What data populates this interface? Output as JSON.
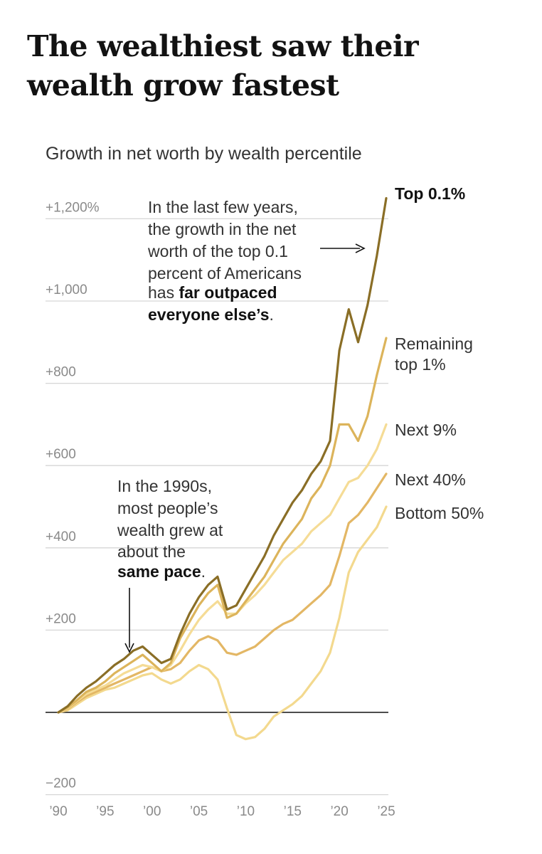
{
  "header": {
    "title": "The wealthiest saw their wealth grow fastest",
    "subtitle": "Growth in net worth by wealth percentile"
  },
  "annotations": {
    "top": {
      "lines": [
        "In the last few years,",
        "the growth in the net",
        "worth of the top 0.1",
        "percent of Americans",
        "has "
      ],
      "bold_a": "far outpaced",
      "bold_b": "everyone else’s",
      "end": "."
    },
    "early": {
      "lines": [
        "In the 1990s,",
        "most people’s",
        "wealth grew at",
        "about the"
      ],
      "bold": "same pace",
      "end": "."
    }
  },
  "chart_data": {
    "type": "line",
    "title": "Growth in net worth by wealth percentile",
    "xlabel": "",
    "ylabel": "",
    "xlim": [
      1990,
      2025
    ],
    "ylim": [
      -200,
      1250
    ],
    "x_ticks": [
      {
        "value": 1990,
        "label": "’90"
      },
      {
        "value": 1995,
        "label": "’95"
      },
      {
        "value": 2000,
        "label": "’00"
      },
      {
        "value": 2005,
        "label": "’05"
      },
      {
        "value": 2010,
        "label": "’10"
      },
      {
        "value": 2015,
        "label": "’15"
      },
      {
        "value": 2020,
        "label": "’20"
      },
      {
        "value": 2025,
        "label": "’25"
      }
    ],
    "y_ticks": [
      {
        "value": 1200,
        "label": "+1,200%"
      },
      {
        "value": 1000,
        "label": "+1,000"
      },
      {
        "value": 800,
        "label": "+800"
      },
      {
        "value": 600,
        "label": "+600"
      },
      {
        "value": 400,
        "label": "+400"
      },
      {
        "value": 200,
        "label": "+200"
      },
      {
        "value": -200,
        "label": "−200"
      }
    ],
    "grid": true,
    "legend": "direct labels at right end of lines",
    "series": [
      {
        "name": "Bottom 50%",
        "color": "#f3d98e",
        "points": [
          [
            1990,
            0
          ],
          [
            1991,
            5
          ],
          [
            1992,
            20
          ],
          [
            1993,
            35
          ],
          [
            1994,
            45
          ],
          [
            1995,
            55
          ],
          [
            1996,
            60
          ],
          [
            1997,
            70
          ],
          [
            1998,
            80
          ],
          [
            1999,
            90
          ],
          [
            2000,
            95
          ],
          [
            2001,
            80
          ],
          [
            2002,
            70
          ],
          [
            2003,
            80
          ],
          [
            2004,
            100
          ],
          [
            2005,
            115
          ],
          [
            2006,
            105
          ],
          [
            2007,
            80
          ],
          [
            2008,
            10
          ],
          [
            2009,
            -55
          ],
          [
            2010,
            -65
          ],
          [
            2011,
            -60
          ],
          [
            2012,
            -40
          ],
          [
            2013,
            -10
          ],
          [
            2014,
            5
          ],
          [
            2015,
            20
          ],
          [
            2016,
            40
          ],
          [
            2017,
            70
          ],
          [
            2018,
            100
          ],
          [
            2019,
            145
          ],
          [
            2020,
            230
          ],
          [
            2021,
            340
          ],
          [
            2022,
            390
          ],
          [
            2023,
            420
          ],
          [
            2024,
            450
          ],
          [
            2025,
            500
          ]
        ]
      },
      {
        "name": "Next 40%",
        "color": "#e3b765",
        "points": [
          [
            1990,
            0
          ],
          [
            1991,
            8
          ],
          [
            1992,
            25
          ],
          [
            1993,
            40
          ],
          [
            1994,
            50
          ],
          [
            1995,
            60
          ],
          [
            1996,
            70
          ],
          [
            1997,
            80
          ],
          [
            1998,
            90
          ],
          [
            1999,
            100
          ],
          [
            2000,
            110
          ],
          [
            2001,
            100
          ],
          [
            2002,
            105
          ],
          [
            2003,
            120
          ],
          [
            2004,
            150
          ],
          [
            2005,
            175
          ],
          [
            2006,
            185
          ],
          [
            2007,
            175
          ],
          [
            2008,
            145
          ],
          [
            2009,
            140
          ],
          [
            2010,
            150
          ],
          [
            2011,
            160
          ],
          [
            2012,
            180
          ],
          [
            2013,
            200
          ],
          [
            2014,
            215
          ],
          [
            2015,
            225
          ],
          [
            2016,
            245
          ],
          [
            2017,
            265
          ],
          [
            2018,
            285
          ],
          [
            2019,
            310
          ],
          [
            2020,
            380
          ],
          [
            2021,
            460
          ],
          [
            2022,
            480
          ],
          [
            2023,
            510
          ],
          [
            2024,
            545
          ],
          [
            2025,
            580
          ]
        ]
      },
      {
        "name": "Next 9%",
        "color": "#f5dc96",
        "points": [
          [
            1990,
            0
          ],
          [
            1991,
            10
          ],
          [
            1992,
            28
          ],
          [
            1993,
            45
          ],
          [
            1994,
            55
          ],
          [
            1995,
            65
          ],
          [
            1996,
            80
          ],
          [
            1997,
            95
          ],
          [
            1998,
            105
          ],
          [
            1999,
            115
          ],
          [
            2000,
            110
          ],
          [
            2001,
            100
          ],
          [
            2002,
            115
          ],
          [
            2003,
            150
          ],
          [
            2004,
            190
          ],
          [
            2005,
            225
          ],
          [
            2006,
            250
          ],
          [
            2007,
            270
          ],
          [
            2008,
            240
          ],
          [
            2009,
            240
          ],
          [
            2010,
            265
          ],
          [
            2011,
            285
          ],
          [
            2012,
            310
          ],
          [
            2013,
            340
          ],
          [
            2014,
            370
          ],
          [
            2015,
            390
          ],
          [
            2016,
            410
          ],
          [
            2017,
            440
          ],
          [
            2018,
            460
          ],
          [
            2019,
            480
          ],
          [
            2020,
            520
          ],
          [
            2021,
            560
          ],
          [
            2022,
            570
          ],
          [
            2023,
            600
          ],
          [
            2024,
            640
          ],
          [
            2025,
            700
          ]
        ]
      },
      {
        "name": "Remaining top 1%",
        "color": "#dcb45b",
        "points": [
          [
            1990,
            0
          ],
          [
            1991,
            12
          ],
          [
            1992,
            30
          ],
          [
            1993,
            50
          ],
          [
            1994,
            60
          ],
          [
            1995,
            75
          ],
          [
            1996,
            95
          ],
          [
            1997,
            110
          ],
          [
            1998,
            125
          ],
          [
            1999,
            140
          ],
          [
            2000,
            120
          ],
          [
            2001,
            100
          ],
          [
            2002,
            120
          ],
          [
            2003,
            180
          ],
          [
            2004,
            220
          ],
          [
            2005,
            260
          ],
          [
            2006,
            290
          ],
          [
            2007,
            310
          ],
          [
            2008,
            230
          ],
          [
            2009,
            240
          ],
          [
            2010,
            270
          ],
          [
            2011,
            300
          ],
          [
            2012,
            330
          ],
          [
            2013,
            370
          ],
          [
            2014,
            410
          ],
          [
            2015,
            440
          ],
          [
            2016,
            470
          ],
          [
            2017,
            520
          ],
          [
            2018,
            550
          ],
          [
            2019,
            600
          ],
          [
            2020,
            700
          ],
          [
            2021,
            700
          ],
          [
            2022,
            660
          ],
          [
            2023,
            720
          ],
          [
            2024,
            820
          ],
          [
            2025,
            910
          ]
        ]
      },
      {
        "name": "Top 0.1%",
        "color": "#8a6e26",
        "points": [
          [
            1990,
            0
          ],
          [
            1991,
            15
          ],
          [
            1992,
            40
          ],
          [
            1993,
            60
          ],
          [
            1994,
            75
          ],
          [
            1995,
            95
          ],
          [
            1996,
            115
          ],
          [
            1997,
            130
          ],
          [
            1998,
            150
          ],
          [
            1999,
            160
          ],
          [
            2000,
            140
          ],
          [
            2001,
            120
          ],
          [
            2002,
            130
          ],
          [
            2003,
            190
          ],
          [
            2004,
            240
          ],
          [
            2005,
            280
          ],
          [
            2006,
            310
          ],
          [
            2007,
            330
          ],
          [
            2008,
            250
          ],
          [
            2009,
            260
          ],
          [
            2010,
            300
          ],
          [
            2011,
            340
          ],
          [
            2012,
            380
          ],
          [
            2013,
            430
          ],
          [
            2014,
            470
          ],
          [
            2015,
            510
          ],
          [
            2016,
            540
          ],
          [
            2017,
            580
          ],
          [
            2018,
            610
          ],
          [
            2019,
            660
          ],
          [
            2020,
            880
          ],
          [
            2021,
            980
          ],
          [
            2022,
            900
          ],
          [
            2023,
            990
          ],
          [
            2024,
            1110
          ],
          [
            2025,
            1250
          ]
        ]
      }
    ],
    "end_labels": [
      {
        "name": "Top 0.1%",
        "lines": [
          "Top 0.1%"
        ]
      },
      {
        "name": "Remaining top 1%",
        "lines": [
          "Remaining",
          "top 1%"
        ]
      },
      {
        "name": "Next 9%",
        "lines": [
          "Next 9%"
        ]
      },
      {
        "name": "Next 40%",
        "lines": [
          "Next 40%"
        ]
      },
      {
        "name": "Bottom 50%",
        "lines": [
          "Bottom 50%"
        ]
      }
    ]
  }
}
